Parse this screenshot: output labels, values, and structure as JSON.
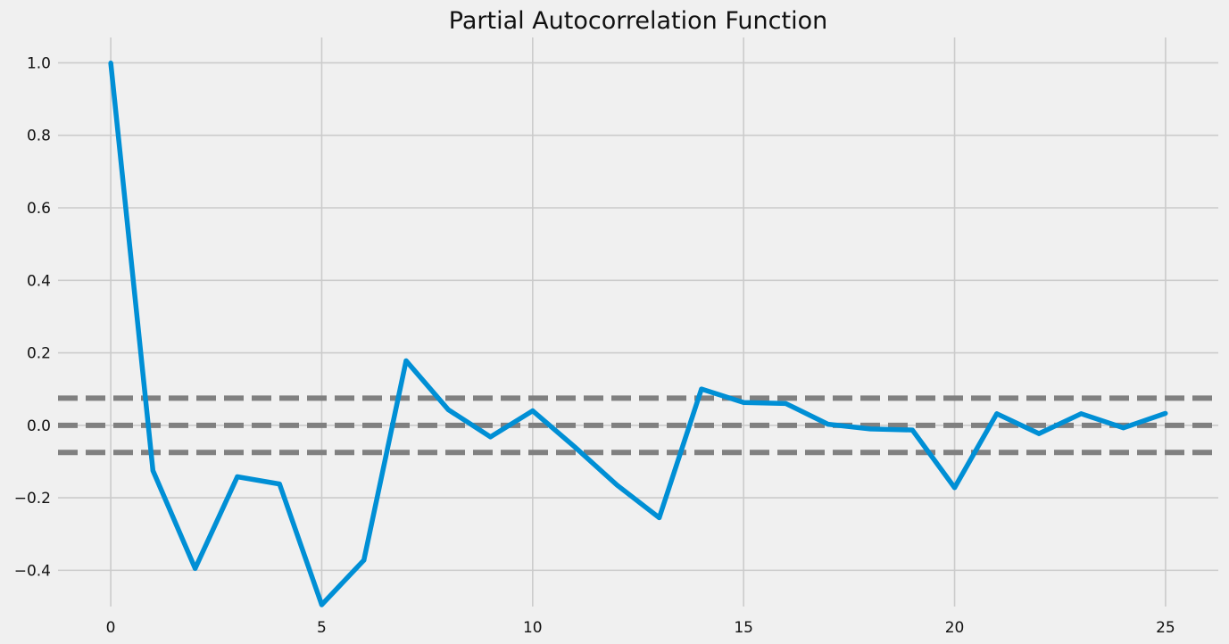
{
  "chart_data": {
    "type": "line",
    "title": "Partial Autocorrelation Function",
    "xlabel": "",
    "ylabel": "",
    "xlim": [
      -1.25,
      26.25
    ],
    "ylim": [
      -0.5,
      1.07
    ],
    "x_ticks": [
      0,
      5,
      10,
      15,
      20,
      25
    ],
    "x_tick_labels": [
      "0",
      "5",
      "10",
      "15",
      "20",
      "25"
    ],
    "y_ticks": [
      -0.4,
      -0.2,
      0.0,
      0.2,
      0.4,
      0.6,
      0.8,
      1.0
    ],
    "y_tick_labels": [
      "−0.4",
      "−0.2",
      "0.0",
      "0.2",
      "0.4",
      "0.6",
      "0.8",
      "1.0"
    ],
    "grid": true,
    "series": [
      {
        "color": "#008fd5",
        "x": [
          0,
          1,
          2,
          3,
          4,
          5,
          6,
          7,
          8,
          9,
          10,
          11,
          12,
          13,
          14,
          15,
          16,
          17,
          18,
          19,
          20,
          21,
          22,
          23,
          24,
          25
        ],
        "values": [
          1.0,
          -0.125,
          -0.395,
          -0.142,
          -0.162,
          -0.495,
          -0.372,
          0.178,
          0.043,
          -0.032,
          0.04,
          -0.06,
          -0.165,
          -0.255,
          0.1,
          0.063,
          0.06,
          0.003,
          -0.01,
          -0.013,
          -0.172,
          0.032,
          -0.023,
          0.032,
          -0.007,
          0.033
        ]
      }
    ],
    "reference_lines": [
      {
        "y": 0.075,
        "color": "#808080",
        "style": "dashed"
      },
      {
        "y": 0.0,
        "color": "#808080",
        "style": "dashed"
      },
      {
        "y": -0.075,
        "color": "#808080",
        "style": "dashed"
      }
    ]
  }
}
